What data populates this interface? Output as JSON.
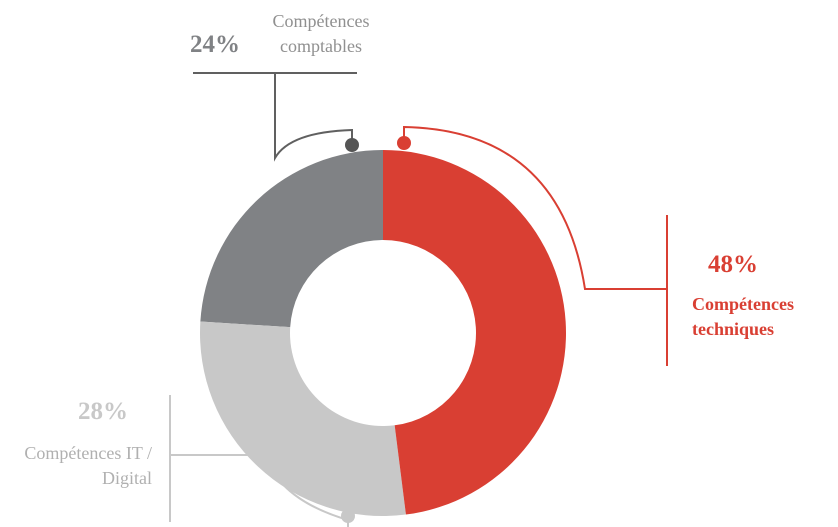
{
  "chart_data": {
    "type": "donut",
    "categories": [
      "Compétences techniques",
      "Compétences IT / Digital",
      "Compétences comptables"
    ],
    "values": [
      48,
      28,
      24
    ],
    "value_labels": [
      "48%",
      "28%",
      "24%"
    ],
    "colors": [
      "#d93f33",
      "#c8c8c8",
      "#808285"
    ]
  }
}
